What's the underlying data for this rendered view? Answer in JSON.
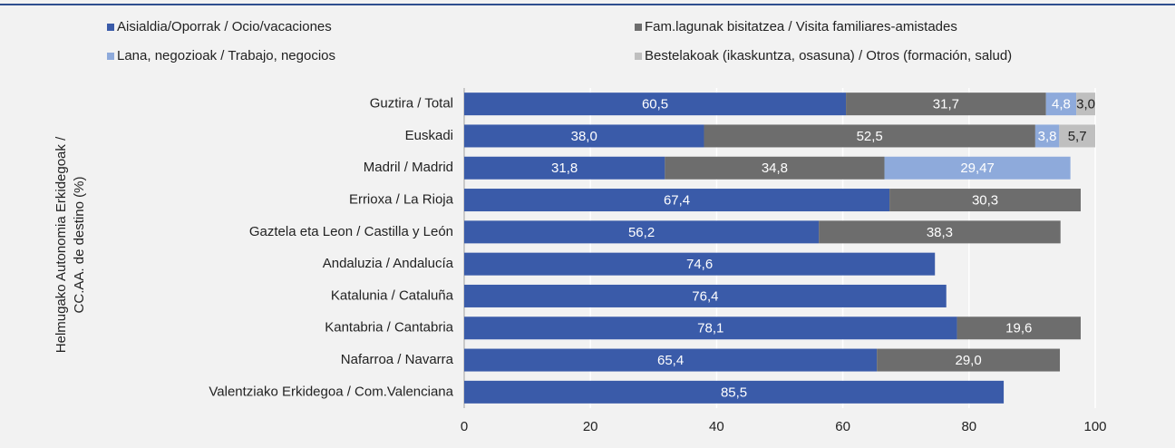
{
  "chart_data": {
    "type": "stacked_barh",
    "y_label": [
      "Helmugako Autonomia Erkidegoak /",
      "CC.AA. de destino (%)"
    ],
    "categories": [
      "Guztira / Total",
      "Euskadi",
      "Madril / Madrid",
      "Errioxa / La Rioja",
      "Gaztela eta Leon / Castilla y León",
      "Andaluzia / Andalucía",
      "Katalunia / Cataluña",
      "Kantabria / Cantabria",
      "Nafarroa / Navarra",
      "Valentziako Erkidegoa / Com.Valenciana"
    ],
    "series": [
      {
        "name": "Aisialdia/Oporrak / Ocio/vacaciones",
        "color": "#3a5ba9",
        "values": [
          60.5,
          38.0,
          31.8,
          67.4,
          56.2,
          74.6,
          76.4,
          78.1,
          65.4,
          85.5
        ],
        "value_labels": [
          "60,5",
          "38,0",
          "31,8",
          "67,4",
          "56,2",
          "74,6",
          "76,4",
          "78,1",
          "65,4",
          "85,5"
        ]
      },
      {
        "name": "Fam.lagunak bisitatzea / Visita familiares-amistades",
        "color": "#6d6d6d",
        "values": [
          31.7,
          52.5,
          34.8,
          30.3,
          38.3,
          null,
          null,
          19.6,
          29.0,
          null
        ],
        "value_labels": [
          "31,7",
          "52,5",
          "34,8",
          "30,3",
          "38,3",
          null,
          null,
          "19,6",
          "29,0",
          null
        ]
      },
      {
        "name": "Lana, negozioak / Trabajo, negocios",
        "color": "#8eaadb",
        "values": [
          4.8,
          3.8,
          29.47,
          null,
          null,
          null,
          null,
          null,
          null,
          null
        ],
        "value_labels": [
          "4,8",
          "3,8",
          "29,47",
          null,
          null,
          null,
          null,
          null,
          null,
          null
        ]
      },
      {
        "name": "Bestelakoak (ikaskuntza, osasuna) / Otros (formación, salud)",
        "color": "#bfbfbf",
        "values": [
          3.0,
          5.7,
          null,
          null,
          null,
          null,
          null,
          null,
          null,
          null
        ],
        "value_labels": [
          "3,0",
          "5,7",
          null,
          null,
          null,
          null,
          null,
          null,
          null,
          null
        ]
      }
    ],
    "xlim": [
      0,
      100
    ],
    "xticks": [
      0,
      20,
      40,
      60,
      80,
      100
    ],
    "grid": true
  }
}
